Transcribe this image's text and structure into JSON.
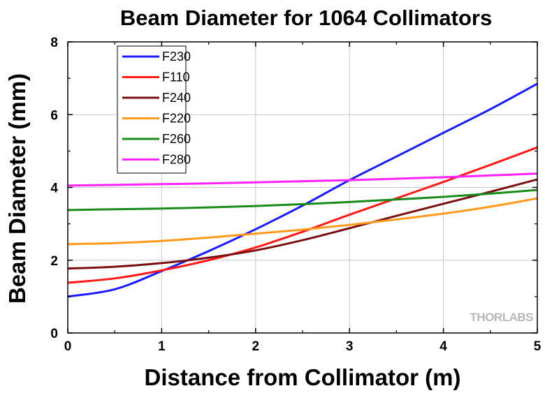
{
  "chart_data": {
    "type": "line",
    "title": "Beam Diameter for 1064 Collimators",
    "xlabel": "Distance from Collimator (m)",
    "ylabel": "Beam Diameter (mm)",
    "xlim": [
      0,
      5
    ],
    "ylim": [
      0,
      8
    ],
    "xticks": [
      "0",
      "1",
      "2",
      "3",
      "4",
      "5"
    ],
    "yticks": [
      "0",
      "2",
      "4",
      "6",
      "8"
    ],
    "grid": true,
    "legend_position": "top-left",
    "watermark": "THORLABS",
    "x": [
      0,
      0.5,
      1,
      1.5,
      2,
      2.5,
      3,
      3.5,
      4,
      4.5,
      5
    ],
    "series": [
      {
        "name": "F230",
        "color": "#1a1aff",
        "values": [
          1.0,
          1.2,
          1.7,
          2.25,
          2.85,
          3.5,
          4.2,
          4.85,
          5.5,
          6.15,
          6.85
        ]
      },
      {
        "name": "F110",
        "color": "#ff1a1a",
        "values": [
          1.38,
          1.5,
          1.72,
          2.0,
          2.35,
          2.78,
          3.25,
          3.7,
          4.15,
          4.62,
          5.1
        ]
      },
      {
        "name": "F240",
        "color": "#7a1010",
        "values": [
          1.77,
          1.82,
          1.92,
          2.07,
          2.27,
          2.55,
          2.88,
          3.22,
          3.55,
          3.88,
          4.22
        ]
      },
      {
        "name": "F220",
        "color": "#ff9a1a",
        "values": [
          2.44,
          2.47,
          2.53,
          2.62,
          2.73,
          2.84,
          2.97,
          3.12,
          3.28,
          3.47,
          3.7
        ]
      },
      {
        "name": "F260",
        "color": "#1a8a1a",
        "values": [
          3.38,
          3.4,
          3.42,
          3.45,
          3.49,
          3.54,
          3.6,
          3.67,
          3.74,
          3.83,
          3.93
        ]
      },
      {
        "name": "F280",
        "color": "#ff22ff",
        "values": [
          4.05,
          4.07,
          4.09,
          4.11,
          4.14,
          4.17,
          4.2,
          4.24,
          4.28,
          4.33,
          4.38
        ]
      }
    ]
  }
}
